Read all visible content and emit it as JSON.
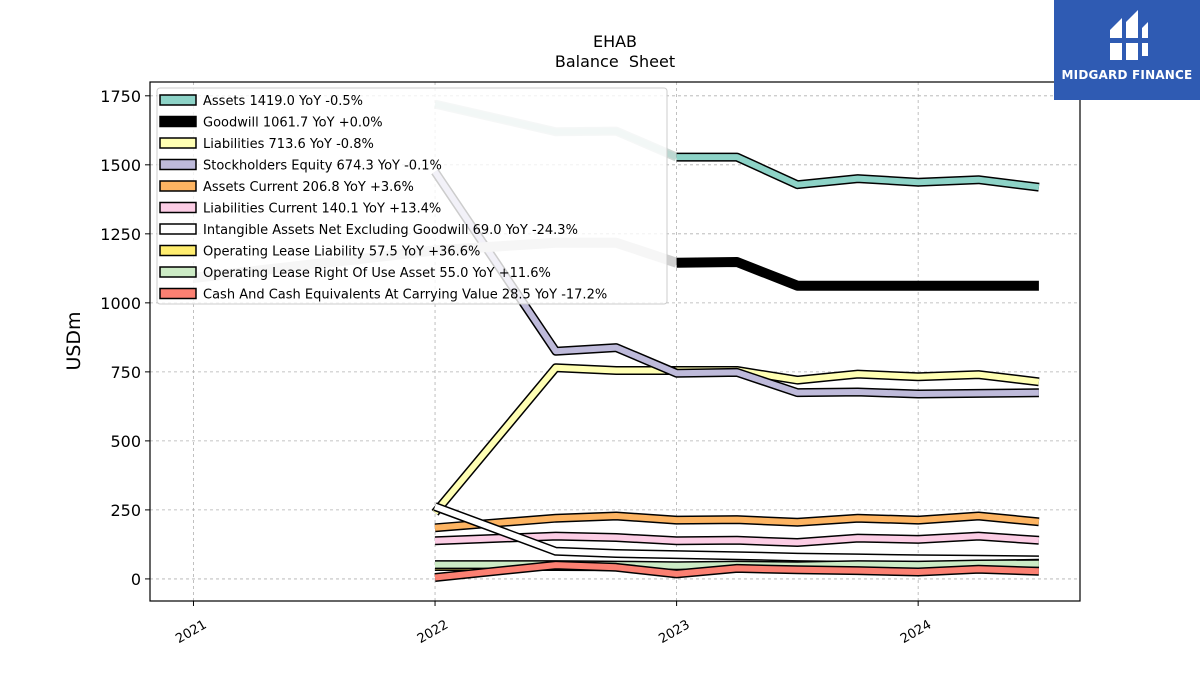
{
  "brand": {
    "name": "MIDGARD FINANCE",
    "bg_color": "#2f5bb3"
  },
  "chart_data": {
    "type": "line",
    "title": "EHAB",
    "subtitle": "Balance  Sheet",
    "ylabel": "USDm",
    "xlabel": "",
    "x_tick_labels": [
      "2021",
      "2022",
      "2023",
      "2024"
    ],
    "x_ticks": [
      2021.0,
      2022.0,
      2023.0,
      2024.0
    ],
    "xlim": [
      2020.82,
      2024.67
    ],
    "ylim": [
      -80,
      1800
    ],
    "y_ticks": [
      0,
      250,
      500,
      750,
      1000,
      1250,
      1500,
      1750
    ],
    "grid": true,
    "legend_position": "top-left",
    "x": [
      2022.0,
      2022.5,
      2022.75,
      2023.0,
      2023.25,
      2023.5,
      2023.75,
      2024.0,
      2024.25,
      2024.5
    ],
    "series": [
      {
        "name": "Assets",
        "legend_label": "Assets  1419.0 YoY -0.5%",
        "color": "#8dd3c7",
        "width": 6,
        "x": [
          2022.0,
          2022.5,
          2022.75,
          2023.0,
          2023.25,
          2023.5,
          2023.75,
          2024.0,
          2024.25,
          2024.5
        ],
        "values": [
          1720,
          1620,
          1622,
          1528,
          1528,
          1428,
          1450,
          1437,
          1446,
          1419
        ],
        "faded_until": 2023.0
      },
      {
        "name": "Goodwill",
        "legend_label": "Goodwill  1061.7 YoY +0.0%",
        "color": "#000000",
        "width": 10,
        "x": [
          2021.0,
          2022.0,
          2022.5,
          2022.75,
          2023.0,
          2023.25,
          2023.5,
          2023.75,
          2024.0,
          2024.25,
          2024.5
        ],
        "values": [
          1090,
          1190,
          1218,
          1218,
          1145,
          1148,
          1062,
          1062,
          1062,
          1062,
          1062
        ],
        "faded_until": 2023.0
      },
      {
        "name": "Liabilities",
        "legend_label": "Liabilities  713.6 YoY -0.8%",
        "color": "#ffffb3",
        "width": 6,
        "x": [
          2022.0,
          2022.5,
          2022.75,
          2023.0,
          2023.25,
          2023.5,
          2023.75,
          2024.0,
          2024.25,
          2024.5
        ],
        "values": [
          240,
          765,
          755,
          755,
          755,
          720,
          742,
          732,
          740,
          714
        ]
      },
      {
        "name": "Stockholders Equity",
        "legend_label": "Stockholders Equity  674.3 YoY -0.1%",
        "color": "#bebada",
        "width": 6,
        "x": [
          2022.0,
          2022.5,
          2022.75,
          2023.0,
          2023.25,
          2023.5,
          2023.75,
          2024.0,
          2024.25,
          2024.5
        ],
        "values": [
          1475,
          825,
          838,
          745,
          748,
          675,
          677,
          670,
          672,
          674
        ]
      },
      {
        "name": "Assets Current",
        "legend_label": "Assets Current  206.8 YoY +3.6%",
        "color": "#fdb462",
        "width": 6,
        "x": [
          2022.0,
          2022.5,
          2022.75,
          2023.0,
          2023.25,
          2023.5,
          2023.75,
          2024.0,
          2024.25,
          2024.5
        ],
        "values": [
          185,
          220,
          228,
          213,
          215,
          205,
          220,
          213,
          228,
          207
        ]
      },
      {
        "name": "Liabilities Current",
        "legend_label": "Liabilities Current  140.1 YoY +13.4%",
        "color": "#fccde5",
        "width": 6,
        "x": [
          2022.0,
          2022.5,
          2022.75,
          2023.0,
          2023.25,
          2023.5,
          2023.75,
          2024.0,
          2024.25,
          2024.5
        ],
        "values": [
          138,
          155,
          150,
          138,
          140,
          132,
          148,
          143,
          155,
          140
        ]
      },
      {
        "name": "Intangible Assets Net Excluding Goodwill",
        "legend_label": "Intangible Assets Net Excluding Goodwill  69.0 YoY -24.3%",
        "color": "#ffffff",
        "width": 6,
        "x": [
          2022.0,
          2022.5,
          2022.75,
          2023.0,
          2023.25,
          2023.5,
          2023.75,
          2024.0,
          2024.25,
          2024.5
        ],
        "values": [
          262,
          100,
          92,
          88,
          84,
          79,
          76,
          73,
          71,
          69
        ]
      },
      {
        "name": "Operating Lease Liability",
        "legend_label": "Operating Lease Liability  57.5 YoY +36.6%",
        "color": "#ffed6f",
        "width": 6,
        "x": [
          2022.0,
          2022.5,
          2022.75,
          2023.0,
          2023.25,
          2023.5,
          2023.75,
          2024.0,
          2024.25,
          2024.5
        ],
        "values": [
          45,
          45,
          44,
          42,
          45,
          43,
          48,
          47,
          53,
          57
        ]
      },
      {
        "name": "Operating Lease Right Of Use Asset",
        "legend_label": "Operating Lease Right Of Use Asset  55.0 YoY +11.6%",
        "color": "#ccebc5",
        "width": 6,
        "x": [
          2022.0,
          2022.5,
          2022.75,
          2023.0,
          2023.25,
          2023.5,
          2023.75,
          2024.0,
          2024.25,
          2024.5
        ],
        "values": [
          52,
          52,
          50,
          48,
          50,
          48,
          52,
          50,
          54,
          55
        ]
      },
      {
        "name": "Cash And Cash Equivalents At Carrying Value",
        "legend_label": "Cash And Cash Equivalents At Carrying Value  28.5 YoY -17.2%",
        "color": "#fb8072",
        "width": 6,
        "x": [
          2022.0,
          2022.5,
          2022.75,
          2023.0,
          2023.25,
          2023.5,
          2023.75,
          2024.0,
          2024.25,
          2024.5
        ],
        "values": [
          5,
          50,
          42,
          18,
          38,
          33,
          30,
          25,
          35,
          28
        ]
      }
    ]
  }
}
